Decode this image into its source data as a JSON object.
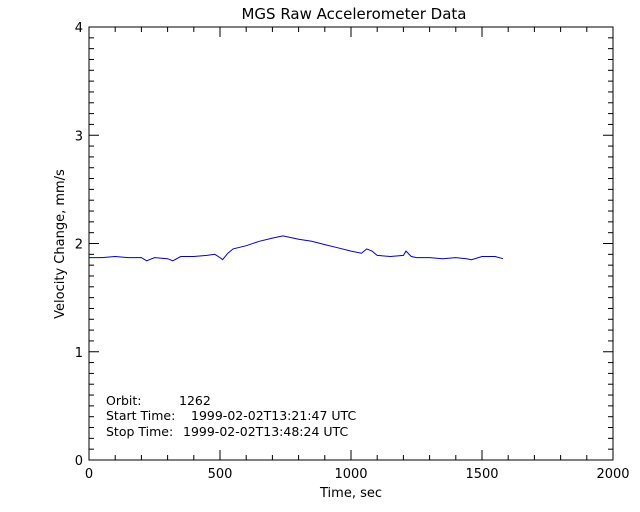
{
  "chart_data": {
    "type": "line",
    "title": "MGS Raw Accelerometer Data",
    "xlabel": "Time, sec",
    "ylabel": "Velocity Change, mm/s",
    "xlim": [
      0,
      2000
    ],
    "ylim": [
      0,
      4
    ],
    "xticks": [
      0,
      500,
      1000,
      1500,
      2000
    ],
    "yticks": [
      0,
      1,
      2,
      3,
      4
    ],
    "xtick_labels": [
      "0",
      "500",
      "1000",
      "1500",
      "2000"
    ],
    "ytick_labels": [
      "0",
      "1",
      "2",
      "3",
      "4"
    ],
    "grid": false,
    "line_color": "#0000cc",
    "series": [
      {
        "x": [
          0,
          50,
          100,
          150,
          200,
          220,
          250,
          300,
          320,
          350,
          400,
          450,
          480,
          500,
          510,
          530,
          550,
          600,
          650,
          700,
          740,
          780,
          800,
          850,
          900,
          950,
          1000,
          1040,
          1060,
          1080,
          1100,
          1150,
          1200,
          1210,
          1230,
          1250,
          1300,
          1350,
          1400,
          1440,
          1460,
          1500,
          1550,
          1580
        ],
        "y": [
          1.87,
          1.87,
          1.88,
          1.87,
          1.87,
          1.84,
          1.87,
          1.86,
          1.84,
          1.88,
          1.88,
          1.89,
          1.9,
          1.87,
          1.85,
          1.91,
          1.95,
          1.98,
          2.02,
          2.05,
          2.07,
          2.05,
          2.04,
          2.02,
          1.99,
          1.96,
          1.93,
          1.91,
          1.95,
          1.93,
          1.89,
          1.88,
          1.89,
          1.93,
          1.88,
          1.87,
          1.87,
          1.86,
          1.87,
          1.86,
          1.85,
          1.88,
          1.88,
          1.86
        ]
      }
    ],
    "annotations": [
      {
        "label": "Orbit:",
        "value": "1262"
      },
      {
        "label": "Start Time:",
        "value": "1999-02-02T13:21:47 UTC"
      },
      {
        "label": "Stop Time:",
        "value": "1999-02-02T13:48:24 UTC"
      }
    ]
  }
}
